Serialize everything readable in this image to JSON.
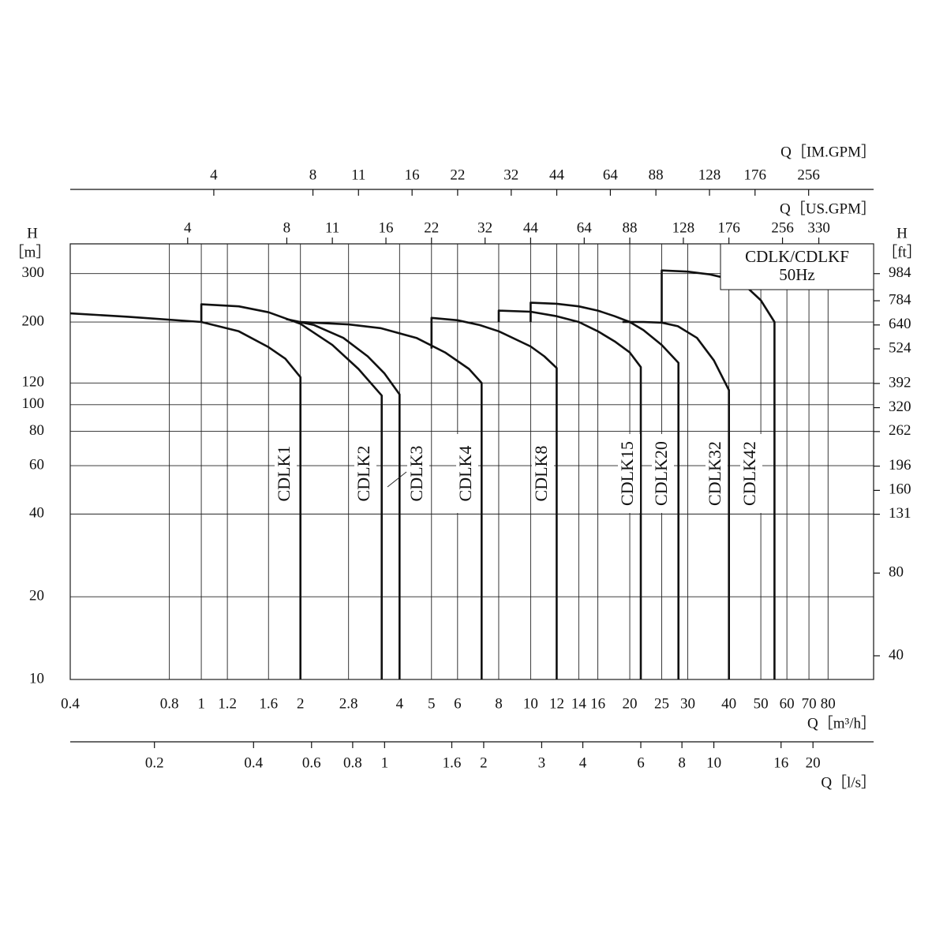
{
  "chart_data": {
    "type": "line",
    "log_x": true,
    "log_y": true,
    "grid": true,
    "annotations": [
      "CDLK/CDLKF",
      "50Hz"
    ],
    "xlabel": "Q［m³/h］",
    "xlim": [
      0.4,
      110
    ],
    "xticks": [
      0.4,
      0.8,
      1,
      1.2,
      1.6,
      2,
      2.8,
      4,
      5,
      6,
      8,
      10,
      12,
      14,
      16,
      20,
      25,
      30,
      40,
      50,
      60,
      70,
      80
    ],
    "ylabel": "H",
    "yunit": "［m］",
    "ylim": [
      10,
      385
    ],
    "yticks": [
      10,
      20,
      40,
      60,
      80,
      100,
      120,
      200,
      300
    ],
    "y2label": "H",
    "y2unit": "［ft］",
    "y2lim": [
      32.8,
      1263
    ],
    "y2ticks": [
      40,
      80,
      131,
      160,
      196,
      262,
      320,
      392,
      524,
      640,
      784,
      984
    ],
    "x2label": "Q［US.GPM］",
    "x2lim": [
      1.76,
      484
    ],
    "x2ticks": [
      4,
      8,
      11,
      16,
      22,
      32,
      44,
      64,
      88,
      128,
      176,
      256,
      330
    ],
    "x3label": "Q［IM.GPM］",
    "x3lim": [
      1.466,
      403.2
    ],
    "x3ticks": [
      4,
      8,
      11,
      16,
      22,
      32,
      44,
      64,
      88,
      128,
      176,
      256
    ],
    "x4label": "Q［l/s］",
    "x4lim": [
      0.111,
      30.56
    ],
    "x4ticks": [
      0.2,
      0.4,
      0.6,
      0.8,
      1,
      1.6,
      2,
      3,
      4,
      6,
      8,
      10,
      16,
      20
    ],
    "series": [
      {
        "name": "CDLK1",
        "color": "#111111",
        "x": [
          0.4,
          0.6,
          1,
          1.3,
          1.6,
          1.8,
          2,
          2
        ],
        "values": [
          215,
          209,
          200,
          185,
          162,
          147,
          126,
          10
        ]
      },
      {
        "name": "CDLK2",
        "color": "#111111",
        "x": [
          1,
          1,
          1.3,
          1.6,
          2,
          2.5,
          3,
          3.53,
          3.53
        ],
        "values": [
          200,
          232,
          228,
          217,
          197,
          165,
          135,
          108,
          10
        ]
      },
      {
        "name": "CDLK3",
        "color": "#111111",
        "x": [
          1.81,
          2.2,
          2.7,
          3.2,
          3.6,
          4,
          4
        ],
        "values": [
          205,
          195,
          175,
          150,
          130,
          109,
          10
        ]
      },
      {
        "name": "CDLK4",
        "color": "#111111",
        "x": [
          2,
          2.8,
          3.5,
          4.5,
          5.5,
          6.5,
          7.1,
          7.1
        ],
        "values": [
          200,
          196,
          190,
          175,
          155,
          135,
          120,
          10
        ]
      },
      {
        "name": "CDLK8",
        "color": "#111111",
        "x": [
          5,
          5,
          6,
          7,
          8,
          10,
          11,
          12,
          12
        ],
        "values": [
          160,
          207,
          203,
          195,
          185,
          163,
          150,
          136,
          10
        ]
      },
      {
        "name": "CDLK15",
        "color": "#111111",
        "x": [
          8,
          8,
          10,
          12,
          14,
          16,
          18,
          20,
          21.6,
          21.6
        ],
        "values": [
          200,
          220,
          218,
          210,
          200,
          185,
          170,
          155,
          137,
          10
        ]
      },
      {
        "name": "CDLK20",
        "color": "#111111",
        "x": [
          10,
          10,
          12,
          14,
          16,
          18,
          20,
          22,
          25,
          28.1,
          28.1
        ],
        "values": [
          200,
          235,
          233,
          228,
          220,
          210,
          200,
          187,
          165,
          142,
          10
        ]
      },
      {
        "name": "CDLK32",
        "color": "#111111",
        "x": [
          19,
          22,
          25,
          28,
          32,
          36,
          40,
          40
        ],
        "values": [
          200,
          200,
          199,
          193,
          175,
          145,
          113,
          10
        ]
      },
      {
        "name": "CDLK42",
        "color": "#111111",
        "x": [
          25,
          25,
          30,
          35,
          40,
          45,
          50,
          55,
          55
        ],
        "values": [
          200,
          308,
          305,
          298,
          287,
          270,
          240,
          200,
          10
        ]
      }
    ]
  }
}
